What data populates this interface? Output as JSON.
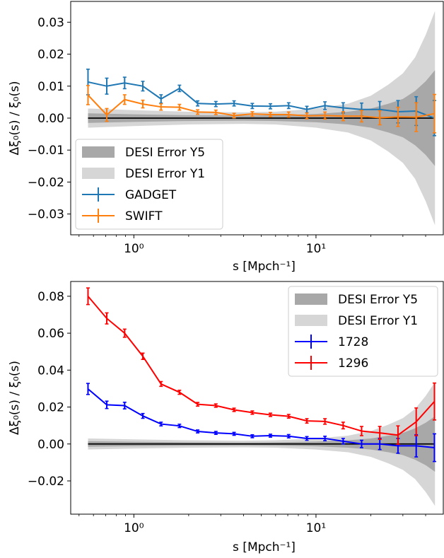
{
  "chart_data": [
    {
      "type": "line",
      "xlabel": "s [Mpch⁻¹]",
      "ylabel": "Δξ₀(s) / ξ₀(s)",
      "xscale": "log",
      "xlim": [
        0.45,
        50
      ],
      "ylim": [
        -0.0365,
        0.0365
      ],
      "xticks": [
        {
          "value": 1,
          "label": "10⁰"
        },
        {
          "value": 10,
          "label": "10¹"
        }
      ],
      "yticks": [
        {
          "value": -0.03,
          "label": "−0.03"
        },
        {
          "value": -0.02,
          "label": "−0.02"
        },
        {
          "value": -0.01,
          "label": "−0.01"
        },
        {
          "value": 0.0,
          "label": "0.00"
        },
        {
          "value": 0.01,
          "label": "0.01"
        },
        {
          "value": 0.02,
          "label": "0.02"
        },
        {
          "value": 0.03,
          "label": "0.03"
        }
      ],
      "legend_position": "lower-left",
      "bands": [
        {
          "name": "DESI Error Y5",
          "color": "#a8a8a8",
          "x": [
            0.56,
            1,
            2,
            4,
            6,
            10,
            15,
            20,
            25,
            30,
            35,
            40,
            45
          ],
          "half_width": [
            0.0015,
            0.0012,
            0.0009,
            0.0008,
            0.0009,
            0.0013,
            0.002,
            0.003,
            0.0045,
            0.006,
            0.0085,
            0.0115,
            0.015
          ]
        },
        {
          "name": "DESI Error Y1",
          "color": "#d6d6d6",
          "x": [
            0.56,
            1,
            2,
            4,
            6,
            10,
            15,
            20,
            25,
            30,
            35,
            40,
            45
          ],
          "half_width": [
            0.003,
            0.0025,
            0.002,
            0.0018,
            0.002,
            0.003,
            0.0045,
            0.007,
            0.0105,
            0.014,
            0.019,
            0.026,
            0.0335
          ]
        }
      ],
      "series": [
        {
          "name": "GADGET",
          "color": "#1f77b4",
          "x": [
            0.56,
            0.71,
            0.89,
            1.12,
            1.41,
            1.78,
            2.24,
            2.82,
            3.55,
            4.47,
            5.62,
            7.08,
            8.91,
            11.2,
            14.1,
            17.8,
            22.4,
            28.2,
            35.5,
            44.7
          ],
          "y": [
            0.0113,
            0.01,
            0.011,
            0.01,
            0.006,
            0.0093,
            0.0046,
            0.0044,
            0.0046,
            0.0038,
            0.0037,
            0.0039,
            0.0027,
            0.0039,
            0.0032,
            0.0027,
            0.0027,
            0.002,
            0.0022,
            0.0
          ],
          "err": [
            0.004,
            0.0025,
            0.0018,
            0.0015,
            0.0013,
            0.001,
            0.0008,
            0.0008,
            0.0008,
            0.0008,
            0.0008,
            0.0009,
            0.001,
            0.0012,
            0.0016,
            0.002,
            0.0025,
            0.0035,
            0.0045,
            0.0055
          ]
        },
        {
          "name": "SWIFT",
          "color": "#ff7f0e",
          "x": [
            0.56,
            0.71,
            0.89,
            1.12,
            1.41,
            1.78,
            2.24,
            2.82,
            3.55,
            4.47,
            5.62,
            7.08,
            8.91,
            11.2,
            14.1,
            17.8,
            22.4,
            28.2,
            35.5,
            44.7
          ],
          "y": [
            0.0072,
            0.001,
            0.0058,
            0.0044,
            0.0035,
            0.0034,
            0.0019,
            0.0018,
            0.0008,
            0.0013,
            0.0011,
            0.0011,
            0.0007,
            0.0008,
            0.0006,
            0.0006,
            0.0001,
            0.0004,
            0.0003,
            0.0014
          ],
          "err": [
            0.003,
            0.002,
            0.0015,
            0.0012,
            0.001,
            0.0009,
            0.0007,
            0.0007,
            0.0007,
            0.0007,
            0.0007,
            0.0008,
            0.0009,
            0.0011,
            0.0014,
            0.0018,
            0.0022,
            0.003,
            0.0045,
            0.006
          ]
        }
      ],
      "zero_line": {
        "color": "#000000",
        "value": 0
      }
    },
    {
      "type": "line",
      "xlabel": "s [Mpch⁻¹]",
      "ylabel": "Δξ₀(s) / ξ₀(s)",
      "xscale": "log",
      "xlim": [
        0.45,
        50
      ],
      "ylim": [
        -0.038,
        0.088
      ],
      "xticks": [
        {
          "value": 1,
          "label": "10⁰"
        },
        {
          "value": 10,
          "label": "10¹"
        }
      ],
      "yticks": [
        {
          "value": -0.02,
          "label": "−0.02"
        },
        {
          "value": 0.0,
          "label": "0.00"
        },
        {
          "value": 0.02,
          "label": "0.02"
        },
        {
          "value": 0.04,
          "label": "0.04"
        },
        {
          "value": 0.06,
          "label": "0.06"
        },
        {
          "value": 0.08,
          "label": "0.08"
        }
      ],
      "legend_position": "upper-right",
      "bands": [
        {
          "name": "DESI Error Y5",
          "color": "#a8a8a8",
          "x": [
            0.56,
            1,
            2,
            4,
            6,
            10,
            15,
            20,
            25,
            30,
            35,
            40,
            45
          ],
          "half_width": [
            0.0015,
            0.0012,
            0.0009,
            0.0008,
            0.0009,
            0.0013,
            0.002,
            0.003,
            0.0045,
            0.006,
            0.0085,
            0.0115,
            0.015
          ]
        },
        {
          "name": "DESI Error Y1",
          "color": "#d6d6d6",
          "x": [
            0.56,
            1,
            2,
            4,
            6,
            10,
            15,
            20,
            25,
            30,
            35,
            40,
            45
          ],
          "half_width": [
            0.003,
            0.0025,
            0.002,
            0.0018,
            0.002,
            0.003,
            0.0045,
            0.007,
            0.0105,
            0.014,
            0.019,
            0.026,
            0.0335
          ]
        }
      ],
      "series": [
        {
          "name": "1728",
          "color": "#0000ff",
          "x": [
            0.56,
            0.71,
            0.89,
            1.12,
            1.41,
            1.78,
            2.24,
            2.82,
            3.55,
            4.47,
            5.62,
            7.08,
            8.91,
            11.2,
            14.1,
            17.8,
            22.4,
            28.2,
            35.5,
            44.7
          ],
          "y": [
            0.0298,
            0.0212,
            0.0208,
            0.0152,
            0.0108,
            0.0098,
            0.0068,
            0.006,
            0.0055,
            0.0042,
            0.0045,
            0.0042,
            0.003,
            0.003,
            0.0015,
            0.0,
            0.0,
            -0.001,
            -0.001,
            -0.002
          ],
          "err": [
            0.003,
            0.002,
            0.0018,
            0.0013,
            0.001,
            0.0009,
            0.0008,
            0.0008,
            0.0008,
            0.0008,
            0.0008,
            0.0009,
            0.001,
            0.0012,
            0.0015,
            0.002,
            0.003,
            0.004,
            0.006,
            0.0075
          ]
        },
        {
          "name": "1296",
          "color": "#ff0000",
          "x": [
            0.56,
            0.71,
            0.89,
            1.12,
            1.41,
            1.78,
            2.24,
            2.82,
            3.55,
            4.47,
            5.62,
            7.08,
            8.91,
            11.2,
            14.1,
            17.8,
            22.4,
            28.2,
            35.5,
            44.7
          ],
          "y": [
            0.08,
            0.068,
            0.06,
            0.0475,
            0.0325,
            0.028,
            0.0215,
            0.0208,
            0.0185,
            0.017,
            0.0158,
            0.015,
            0.0125,
            0.0122,
            0.01,
            0.007,
            0.006,
            0.0048,
            0.012,
            0.023
          ],
          "err": [
            0.0045,
            0.003,
            0.0022,
            0.0017,
            0.0013,
            0.0011,
            0.001,
            0.0009,
            0.0009,
            0.0009,
            0.0009,
            0.001,
            0.0012,
            0.0015,
            0.0018,
            0.0025,
            0.0035,
            0.005,
            0.0075,
            0.01
          ]
        }
      ],
      "zero_line": {
        "color": "#000000",
        "value": 0
      }
    }
  ]
}
